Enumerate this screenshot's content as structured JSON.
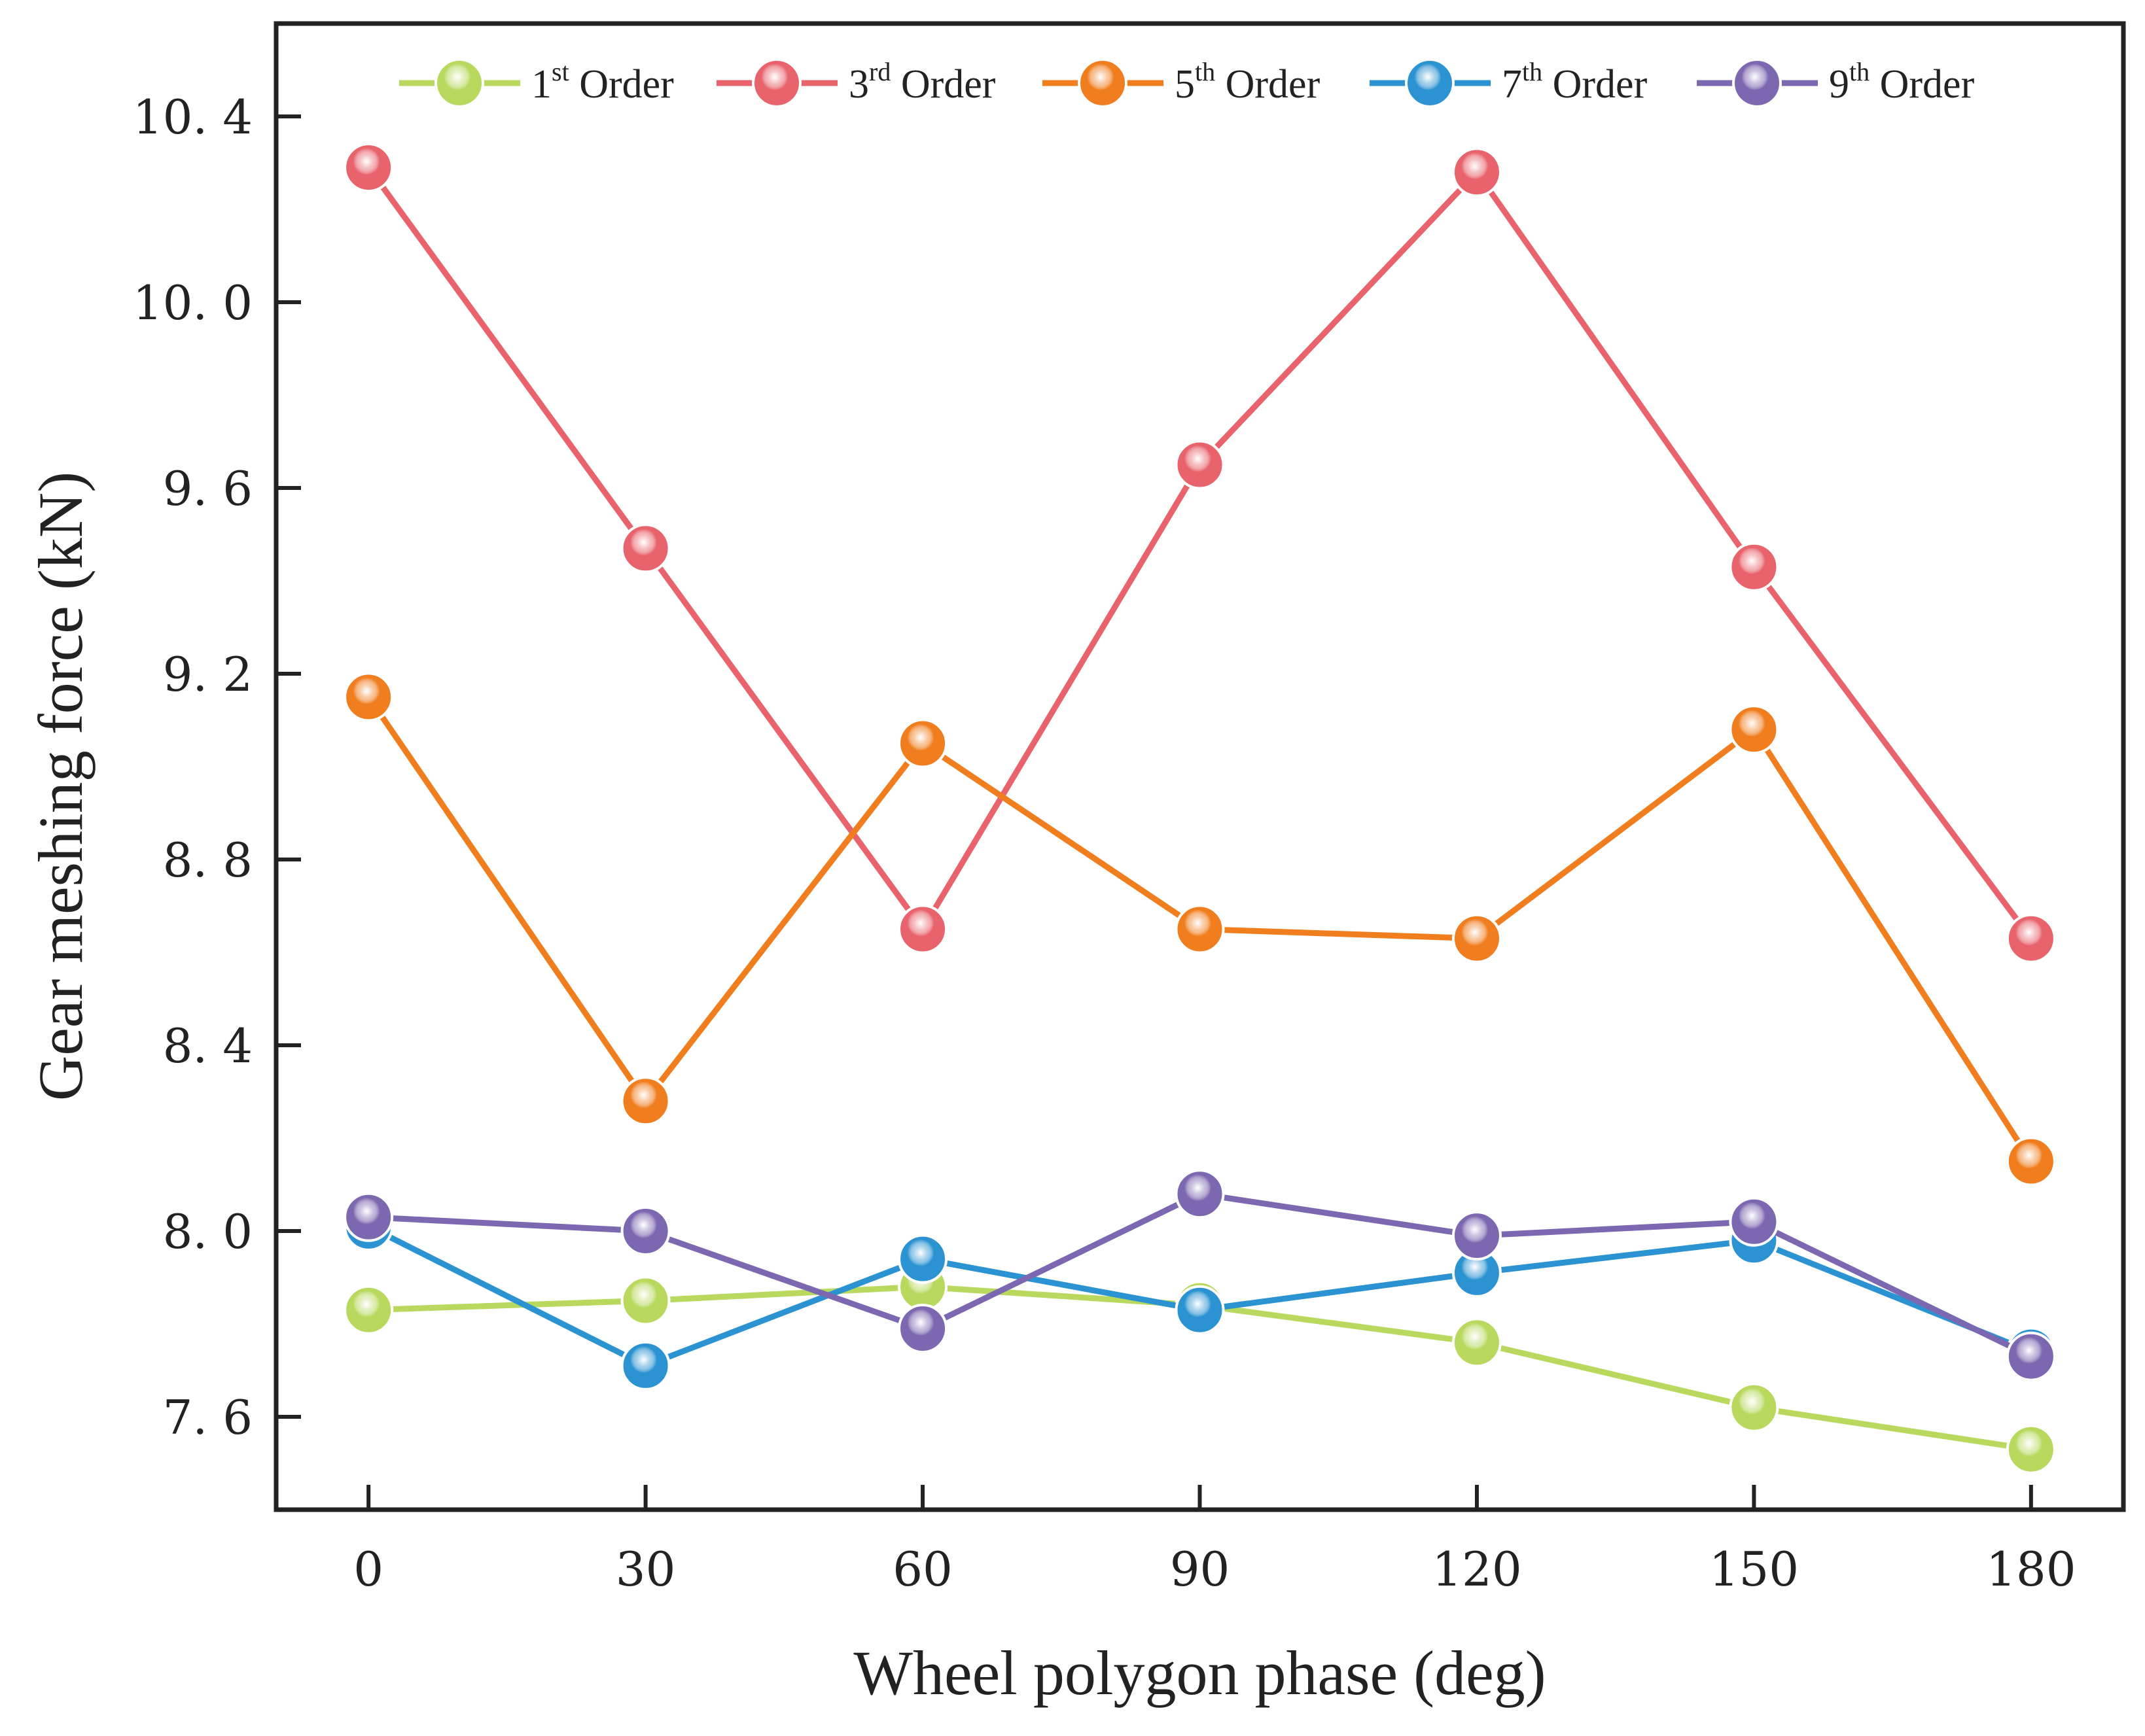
{
  "chart_data": {
    "type": "line",
    "title": "",
    "xlabel": "Wheel polygon phase (deg)",
    "ylabel": "Gear meshing force (kN)",
    "x": [
      0,
      30,
      60,
      90,
      120,
      150,
      180
    ],
    "xlim": [
      -10,
      190
    ],
    "ylim": [
      7.4,
      10.6
    ],
    "xticks": [
      "0",
      "30",
      "60",
      "90",
      "120",
      "150",
      "180"
    ],
    "yticks": [
      "7. 6",
      "8. 0",
      "8. 4",
      "8. 8",
      "9. 2",
      "9. 6",
      "10. 0",
      "10. 4"
    ],
    "ytick_values": [
      7.6,
      8.0,
      8.4,
      8.8,
      9.2,
      9.6,
      10.0,
      10.4
    ],
    "grid": false,
    "legend_position": "top",
    "series": [
      {
        "name": "1st Order",
        "label_num": "1",
        "label_sup": "st",
        "label_rest": " Order",
        "color": "#b8d95e",
        "values": [
          7.83,
          7.85,
          7.88,
          7.84,
          7.76,
          7.62,
          7.53
        ]
      },
      {
        "name": "3rd Order",
        "label_num": "3",
        "label_sup": "rd",
        "label_rest": " Order",
        "color": "#e8636c",
        "values": [
          10.29,
          9.47,
          8.65,
          9.65,
          10.28,
          9.43,
          8.63
        ]
      },
      {
        "name": "5th Order",
        "label_num": "5",
        "label_sup": "th",
        "label_rest": " Order",
        "color": "#f07d1e",
        "values": [
          9.15,
          8.28,
          9.05,
          8.65,
          8.63,
          9.08,
          8.15
        ]
      },
      {
        "name": "7th Order",
        "label_num": "7",
        "label_sup": "th",
        "label_rest": " Order",
        "color": "#2b93d1",
        "values": [
          8.01,
          7.71,
          7.94,
          7.83,
          7.91,
          7.98,
          7.74
        ]
      },
      {
        "name": "9th Order",
        "label_num": "9",
        "label_sup": "th",
        "label_rest": " Order",
        "color": "#7b68b0",
        "values": [
          8.03,
          8.0,
          7.79,
          8.08,
          7.99,
          8.02,
          7.73
        ]
      }
    ]
  }
}
